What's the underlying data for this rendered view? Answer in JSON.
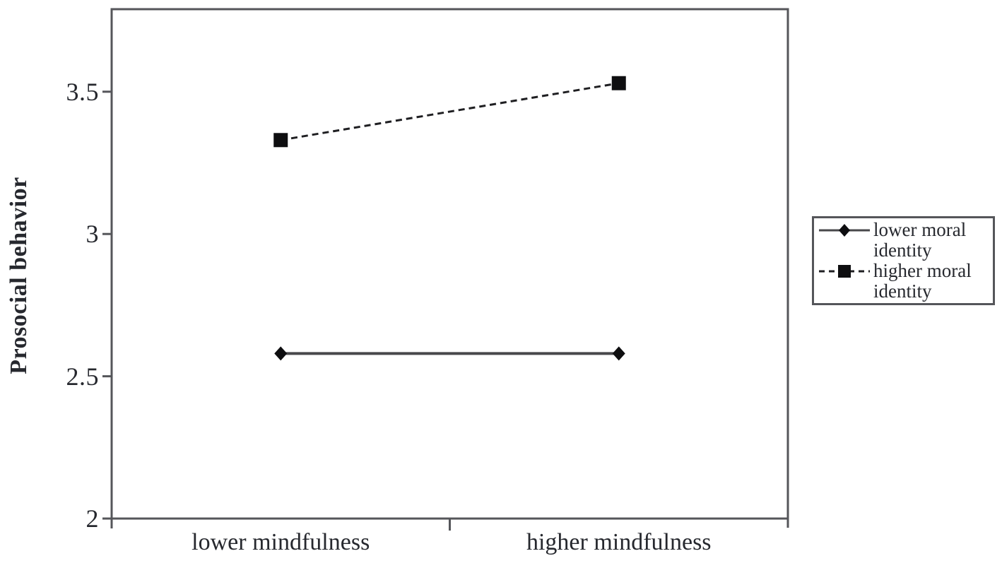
{
  "chart_data": {
    "type": "line",
    "title": "",
    "xlabel": "",
    "ylabel": "Prosocial behavior",
    "categories": [
      "lower mindfulness",
      "higher mindfulness"
    ],
    "series": [
      {
        "name": "lower moral identity",
        "values": [
          2.58,
          2.58
        ],
        "line_style": "solid",
        "marker": "diamond"
      },
      {
        "name": "higher moral identity",
        "values": [
          3.33,
          3.53
        ],
        "line_style": "dashed",
        "marker": "square"
      }
    ],
    "ylim": [
      2,
      3.79
    ],
    "yticks": [
      2,
      2.5,
      3,
      3.5
    ],
    "ytick_labels": [
      "2",
      "2.5",
      "3",
      "3.5"
    ],
    "grid": false,
    "legend_position": "right-outside"
  },
  "colors": {
    "axis": "#55565a",
    "solid_line": "#48484b",
    "dashed_line": "#1f1f22",
    "marker": "#0e0e10",
    "text": "#26282e",
    "background": "#ffffff"
  }
}
